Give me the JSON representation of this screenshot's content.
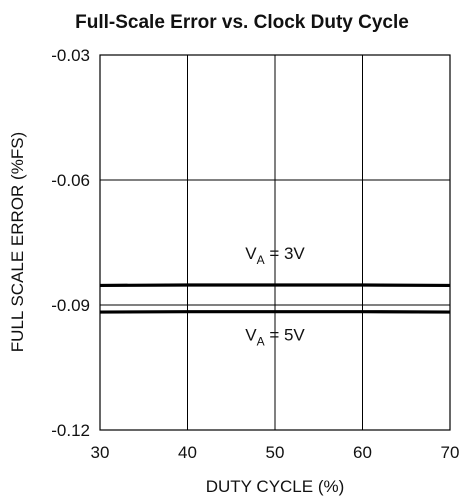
{
  "chart_data": {
    "type": "line",
    "title": "Full-Scale Error vs. Clock Duty Cycle",
    "xlabel": "DUTY CYCLE (%)",
    "ylabel": "FULL SCALE ERROR (%FS)",
    "xlim": [
      30,
      70
    ],
    "ylim": [
      -0.12,
      -0.03
    ],
    "x_ticks": [
      "30",
      "40",
      "50",
      "60",
      "70"
    ],
    "y_ticks": [
      "-0.03",
      "-0.06",
      "-0.09",
      "-0.12"
    ],
    "grid": true,
    "series": [
      {
        "name": "VA = 3V",
        "color": "#000000",
        "x": [
          30,
          40,
          50,
          60,
          70
        ],
        "y": [
          -0.0853,
          -0.0852,
          -0.0852,
          -0.0852,
          -0.0853
        ]
      },
      {
        "name": "VA = 5V",
        "color": "#000000",
        "x": [
          30,
          40,
          50,
          60,
          70
        ],
        "y": [
          -0.0917,
          -0.0916,
          -0.0916,
          -0.0916,
          -0.0917
        ]
      }
    ],
    "annotations": [
      {
        "label_main": "V",
        "label_sub": "A",
        "label_rest": " = 3V",
        "x": 50,
        "y": -0.079
      },
      {
        "label_main": "V",
        "label_sub": "A",
        "label_rest": " = 5V",
        "x": 50,
        "y": -0.0985
      }
    ]
  }
}
